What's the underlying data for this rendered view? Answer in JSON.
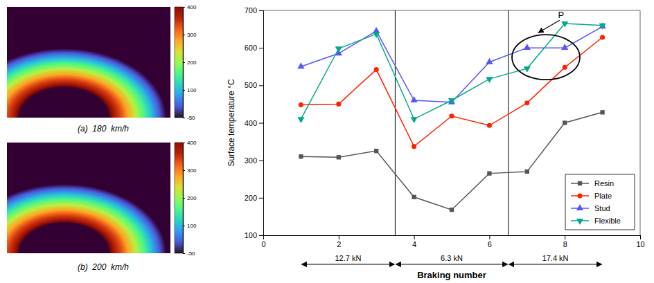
{
  "chart_data": {
    "type": "line",
    "x": [
      1,
      2,
      3,
      4,
      5,
      6,
      7,
      8,
      9
    ],
    "series": [
      {
        "name": "Resin",
        "color": "#555555",
        "marker": "square",
        "values": [
          310,
          308,
          325,
          202,
          168,
          265,
          270,
          400,
          428
        ]
      },
      {
        "name": "Plate",
        "color": "#ff2200",
        "marker": "circle",
        "values": [
          448,
          450,
          542,
          337,
          418,
          393,
          453,
          548,
          628
        ]
      },
      {
        "name": "Stud",
        "color": "#5555ff",
        "marker": "triangle-up",
        "values": [
          550,
          585,
          645,
          460,
          455,
          562,
          600,
          600,
          657
        ]
      },
      {
        "name": "Flexible",
        "color": "#00aa88",
        "marker": "triangle-down",
        "values": [
          410,
          598,
          637,
          410,
          460,
          517,
          545,
          665,
          660
        ]
      }
    ],
    "xlim": [
      0,
      10
    ],
    "ylim": [
      100,
      700
    ],
    "xticks": [
      0,
      2,
      4,
      6,
      8,
      10
    ],
    "yticks": [
      100,
      200,
      300,
      400,
      500,
      600,
      700
    ],
    "xlabel": "Braking number",
    "ylabel": "Surface temperature °C",
    "grid": false,
    "legend": "lower right",
    "dividers": [
      3.5,
      6.5
    ],
    "sections": [
      {
        "label": "12.7 kN",
        "x_range": [
          1,
          3.5
        ]
      },
      {
        "label": "6.3 kN",
        "x_range": [
          3.5,
          6.5
        ]
      },
      {
        "label": "17.4 kN",
        "x_range": [
          6.5,
          9
        ]
      }
    ],
    "ellipse": {
      "center": [
        7.5,
        575
      ],
      "width": 1.8,
      "height": 120
    },
    "annotation": {
      "text": "P"
    },
    "images": [
      {
        "label": "(a)  180  km/h"
      },
      {
        "label": "(b)  200  km/h"
      }
    ],
    "colorbar": {
      "ticks": [
        -50,
        100,
        200,
        300,
        400
      ]
    }
  }
}
